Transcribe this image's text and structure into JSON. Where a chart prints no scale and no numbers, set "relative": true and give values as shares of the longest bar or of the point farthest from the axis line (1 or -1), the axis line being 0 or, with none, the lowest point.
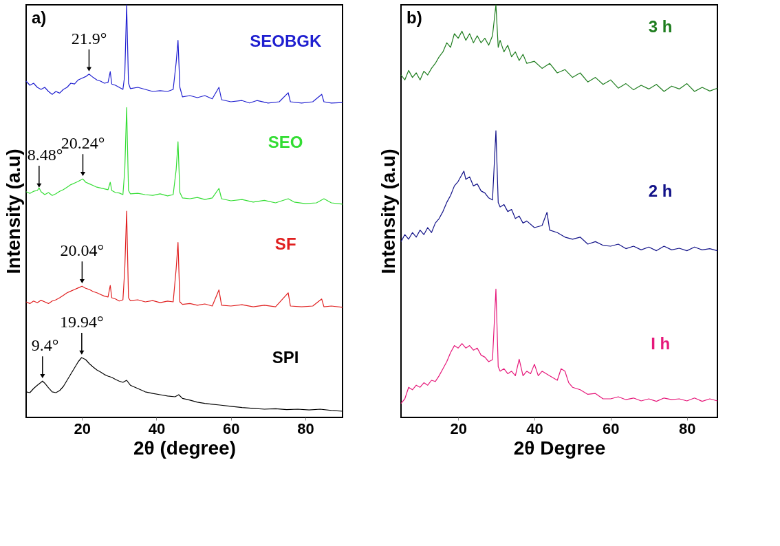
{
  "chart_data": [
    {
      "type": "line",
      "relative": true,
      "xlabel": "2θ (degree)",
      "ylabel": "Intensity (a.u)",
      "xlim": [
        5,
        90
      ],
      "xticks": [
        20,
        40,
        60,
        80
      ],
      "grid": false,
      "line_style": "solid",
      "annotations": [
        "a)",
        {
          "text": "21.9°",
          "x": 21.9,
          "y": 0.832
        },
        {
          "text": "20.24°",
          "x": 20.24,
          "y": 0.578
        },
        {
          "text": "8.48°",
          "x": 8.48,
          "y": 0.55
        },
        {
          "text": "20.04°",
          "x": 20.04,
          "y": 0.318
        },
        {
          "text": "9.4°",
          "x": 9.4,
          "y": 0.088
        },
        {
          "text": "19.94°",
          "x": 19.94,
          "y": 0.145
        }
      ],
      "series": [
        {
          "name": "SEOBGK",
          "color": "#1f1fd0",
          "x": [
            5,
            6,
            7,
            8,
            9,
            10,
            11,
            12,
            13,
            14,
            15,
            16,
            17,
            18,
            19,
            20,
            21,
            21.9,
            23,
            24,
            25,
            26,
            27,
            27.6,
            28,
            29,
            30,
            31,
            31.5,
            32,
            32.5,
            33,
            35,
            37,
            39,
            41,
            43,
            44.5,
            45.3,
            45.8,
            46.3,
            47,
            49,
            51,
            53,
            55,
            56.8,
            57.5,
            60,
            63,
            65,
            67,
            70,
            73,
            75.4,
            76,
            79,
            82,
            84.4,
            85,
            87,
            90
          ],
          "values": [
            0.815,
            0.805,
            0.81,
            0.8,
            0.795,
            0.8,
            0.79,
            0.783,
            0.79,
            0.786,
            0.795,
            0.8,
            0.81,
            0.808,
            0.818,
            0.822,
            0.826,
            0.832,
            0.824,
            0.818,
            0.815,
            0.81,
            0.812,
            0.838,
            0.808,
            0.805,
            0.8,
            0.795,
            0.83,
            1.0,
            0.81,
            0.797,
            0.8,
            0.795,
            0.79,
            0.792,
            0.79,
            0.795,
            0.86,
            0.914,
            0.8,
            0.777,
            0.78,
            0.775,
            0.78,
            0.772,
            0.8,
            0.77,
            0.765,
            0.768,
            0.762,
            0.768,
            0.762,
            0.765,
            0.787,
            0.765,
            0.762,
            0.765,
            0.783,
            0.765,
            0.762,
            0.763
          ]
        },
        {
          "name": "SEO",
          "color": "#33dd33",
          "x": [
            5,
            6,
            7,
            8,
            8.5,
            9,
            10,
            11,
            12,
            13,
            14,
            15,
            16,
            17,
            18,
            19,
            20.2,
            21,
            22,
            23,
            24,
            25,
            27,
            27.6,
            28,
            29,
            30,
            31,
            31.5,
            32,
            32.5,
            33,
            35,
            37,
            39,
            41,
            43,
            44.5,
            45.3,
            45.8,
            46.3,
            47,
            49,
            51,
            53,
            55,
            56.8,
            57.5,
            60,
            63,
            66,
            69,
            72,
            75.4,
            77,
            80,
            83,
            85,
            87,
            90
          ],
          "values": [
            0.547,
            0.543,
            0.548,
            0.55,
            0.556,
            0.547,
            0.54,
            0.545,
            0.538,
            0.542,
            0.548,
            0.552,
            0.558,
            0.564,
            0.568,
            0.572,
            0.578,
            0.57,
            0.566,
            0.562,
            0.558,
            0.556,
            0.552,
            0.57,
            0.55,
            0.545,
            0.544,
            0.54,
            0.6,
            0.751,
            0.55,
            0.542,
            0.543,
            0.54,
            0.538,
            0.542,
            0.537,
            0.54,
            0.6,
            0.668,
            0.545,
            0.532,
            0.53,
            0.533,
            0.528,
            0.532,
            0.555,
            0.53,
            0.525,
            0.528,
            0.522,
            0.526,
            0.52,
            0.53,
            0.522,
            0.518,
            0.52,
            0.53,
            0.52,
            0.517
          ]
        },
        {
          "name": "SF",
          "color": "#e01f1f",
          "x": [
            5,
            6,
            7,
            8,
            9,
            10,
            11,
            12,
            13,
            14,
            15,
            16,
            17,
            18,
            19,
            20,
            21,
            22,
            23,
            24,
            25,
            26,
            27,
            27.6,
            28,
            29,
            30,
            31,
            31.5,
            32,
            32.5,
            33,
            35,
            37,
            39,
            41,
            43,
            44.5,
            45.3,
            45.8,
            46.3,
            47,
            49,
            51,
            53,
            55,
            56.8,
            57.5,
            60,
            63,
            66,
            69,
            72,
            75.4,
            76,
            79,
            82,
            84.4,
            85,
            87,
            90
          ],
          "values": [
            0.28,
            0.276,
            0.282,
            0.278,
            0.284,
            0.28,
            0.276,
            0.282,
            0.285,
            0.29,
            0.296,
            0.302,
            0.306,
            0.31,
            0.314,
            0.318,
            0.313,
            0.31,
            0.305,
            0.302,
            0.298,
            0.294,
            0.292,
            0.32,
            0.29,
            0.287,
            0.282,
            0.285,
            0.36,
            0.5,
            0.29,
            0.283,
            0.285,
            0.28,
            0.283,
            0.278,
            0.282,
            0.28,
            0.36,
            0.424,
            0.28,
            0.274,
            0.276,
            0.272,
            0.275,
            0.27,
            0.309,
            0.272,
            0.27,
            0.273,
            0.268,
            0.272,
            0.268,
            0.302,
            0.27,
            0.268,
            0.27,
            0.287,
            0.268,
            0.27,
            0.267
          ]
        },
        {
          "name": "SPI",
          "color": "#000000",
          "x": [
            5,
            6,
            7,
            8,
            9,
            9.4,
            10,
            11,
            12,
            13,
            14,
            15,
            16,
            17,
            18,
            19,
            19.9,
            21,
            22,
            23,
            24,
            25,
            26,
            27,
            28,
            29,
            30,
            31,
            32,
            33,
            35,
            37,
            39,
            41,
            43,
            45,
            46,
            47,
            49,
            51,
            53,
            55,
            57,
            60,
            63,
            66,
            69,
            72,
            75,
            78,
            81,
            84,
            87,
            90
          ],
          "values": [
            0.062,
            0.06,
            0.07,
            0.078,
            0.085,
            0.088,
            0.083,
            0.072,
            0.062,
            0.06,
            0.065,
            0.075,
            0.09,
            0.105,
            0.12,
            0.135,
            0.145,
            0.14,
            0.13,
            0.122,
            0.115,
            0.11,
            0.104,
            0.1,
            0.097,
            0.092,
            0.088,
            0.085,
            0.09,
            0.078,
            0.07,
            0.062,
            0.058,
            0.055,
            0.052,
            0.05,
            0.055,
            0.046,
            0.042,
            0.037,
            0.034,
            0.032,
            0.03,
            0.027,
            0.024,
            0.022,
            0.02,
            0.021,
            0.019,
            0.02,
            0.018,
            0.02,
            0.017,
            0.015
          ]
        }
      ]
    },
    {
      "type": "line",
      "relative": true,
      "xlabel": "2θ Degree",
      "ylabel": "Intensity (a.u)",
      "xlim": [
        5,
        88
      ],
      "xticks": [
        20,
        40,
        60,
        80
      ],
      "grid": false,
      "line_style": "solid",
      "annotations": [
        "b)"
      ],
      "series": [
        {
          "name": "3 h",
          "color": "#1e7d1e",
          "x": [
            5,
            6,
            7,
            8,
            9,
            10,
            11,
            12,
            13,
            14,
            15,
            16,
            17,
            18,
            19,
            20,
            21,
            22,
            23,
            24,
            25,
            26,
            27,
            28,
            29,
            29.9,
            30.5,
            31,
            32,
            33,
            34,
            35,
            36,
            37,
            38,
            40,
            42,
            44,
            46,
            48,
            50,
            52,
            54,
            56,
            58,
            60,
            62,
            64,
            66,
            68,
            70,
            72,
            74,
            76,
            78,
            80,
            82,
            84,
            86,
            88
          ],
          "values": [
            0.83,
            0.818,
            0.841,
            0.824,
            0.835,
            0.818,
            0.839,
            0.83,
            0.846,
            0.858,
            0.874,
            0.886,
            0.908,
            0.897,
            0.93,
            0.919,
            0.936,
            0.914,
            0.93,
            0.908,
            0.925,
            0.908,
            0.919,
            0.902,
            0.925,
            1.0,
            0.897,
            0.914,
            0.886,
            0.902,
            0.874,
            0.886,
            0.865,
            0.88,
            0.858,
            0.863,
            0.846,
            0.858,
            0.835,
            0.843,
            0.824,
            0.835,
            0.813,
            0.824,
            0.807,
            0.818,
            0.798,
            0.809,
            0.794,
            0.805,
            0.796,
            0.807,
            0.79,
            0.803,
            0.796,
            0.809,
            0.79,
            0.8,
            0.791,
            0.798
          ]
        },
        {
          "name": "2 h",
          "color": "#111188",
          "x": [
            5,
            6,
            7,
            8,
            9,
            10,
            11,
            12,
            13,
            14,
            15,
            16,
            17,
            18,
            19,
            20,
            21,
            21.5,
            22,
            23,
            24,
            25,
            26,
            27,
            28,
            29,
            29.9,
            30.5,
            31,
            32,
            33,
            34,
            35,
            36,
            37,
            38,
            40,
            42,
            43.3,
            44,
            46,
            48,
            50,
            52,
            54,
            56,
            58,
            60,
            62,
            64,
            66,
            68,
            70,
            72,
            74,
            76,
            78,
            80,
            82,
            84,
            86,
            88
          ],
          "values": [
            0.426,
            0.443,
            0.432,
            0.448,
            0.437,
            0.454,
            0.443,
            0.46,
            0.448,
            0.471,
            0.482,
            0.499,
            0.521,
            0.538,
            0.561,
            0.572,
            0.589,
            0.597,
            0.577,
            0.583,
            0.561,
            0.566,
            0.549,
            0.544,
            0.532,
            0.527,
            0.695,
            0.521,
            0.51,
            0.516,
            0.499,
            0.504,
            0.482,
            0.488,
            0.471,
            0.476,
            0.46,
            0.465,
            0.497,
            0.454,
            0.448,
            0.437,
            0.432,
            0.437,
            0.42,
            0.426,
            0.417,
            0.415,
            0.42,
            0.409,
            0.415,
            0.406,
            0.413,
            0.404,
            0.415,
            0.406,
            0.41,
            0.404,
            0.413,
            0.406,
            0.409,
            0.404
          ]
        },
        {
          "name": "I h",
          "color": "#e6187a",
          "x": [
            5,
            6,
            7,
            8,
            9,
            10,
            11,
            12,
            13,
            14,
            15,
            16,
            17,
            18,
            19,
            20,
            21,
            22,
            23,
            24,
            25,
            26,
            27,
            28,
            29,
            29.9,
            30.5,
            31,
            32,
            33,
            34,
            35,
            36,
            37,
            38,
            39,
            40,
            41,
            42,
            44,
            46,
            47,
            48,
            49,
            50,
            52,
            54,
            56,
            58,
            60,
            62,
            64,
            66,
            68,
            70,
            72,
            74,
            76,
            78,
            80,
            82,
            84,
            86,
            88
          ],
          "values": [
            0.034,
            0.045,
            0.073,
            0.067,
            0.078,
            0.073,
            0.084,
            0.078,
            0.09,
            0.087,
            0.101,
            0.118,
            0.135,
            0.157,
            0.174,
            0.168,
            0.179,
            0.168,
            0.174,
            0.163,
            0.168,
            0.151,
            0.146,
            0.135,
            0.14,
            0.311,
            0.123,
            0.112,
            0.118,
            0.106,
            0.112,
            0.101,
            0.141,
            0.101,
            0.112,
            0.106,
            0.129,
            0.101,
            0.112,
            0.101,
            0.09,
            0.118,
            0.112,
            0.084,
            0.073,
            0.067,
            0.056,
            0.058,
            0.045,
            0.045,
            0.05,
            0.043,
            0.047,
            0.04,
            0.045,
            0.039,
            0.047,
            0.043,
            0.045,
            0.04,
            0.047,
            0.039,
            0.045,
            0.04
          ]
        }
      ]
    }
  ]
}
